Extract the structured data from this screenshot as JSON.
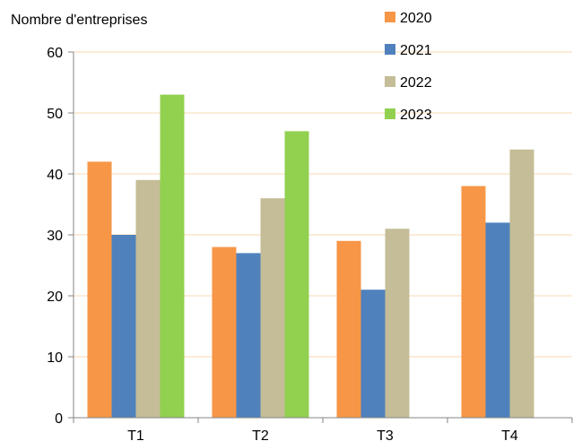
{
  "chart_data": {
    "type": "bar",
    "ylabel": "Nombre d'entreprises",
    "categories": [
      "T1",
      "T2",
      "T3",
      "T4"
    ],
    "ylim": [
      0,
      60
    ],
    "yticks": [
      0,
      10,
      20,
      30,
      40,
      50,
      60
    ],
    "grid": "horizontal",
    "legend_position": "top-right",
    "series": [
      {
        "name": "2020",
        "color": "#F79646",
        "values": [
          42,
          28,
          29,
          38
        ]
      },
      {
        "name": "2021",
        "color": "#4F81BD",
        "values": [
          30,
          27,
          21,
          32
        ]
      },
      {
        "name": "2022",
        "color": "#C4BD97",
        "values": [
          39,
          36,
          31,
          44
        ]
      },
      {
        "name": "2023",
        "color": "#92D050",
        "values": [
          53,
          47,
          null,
          null
        ]
      }
    ]
  }
}
